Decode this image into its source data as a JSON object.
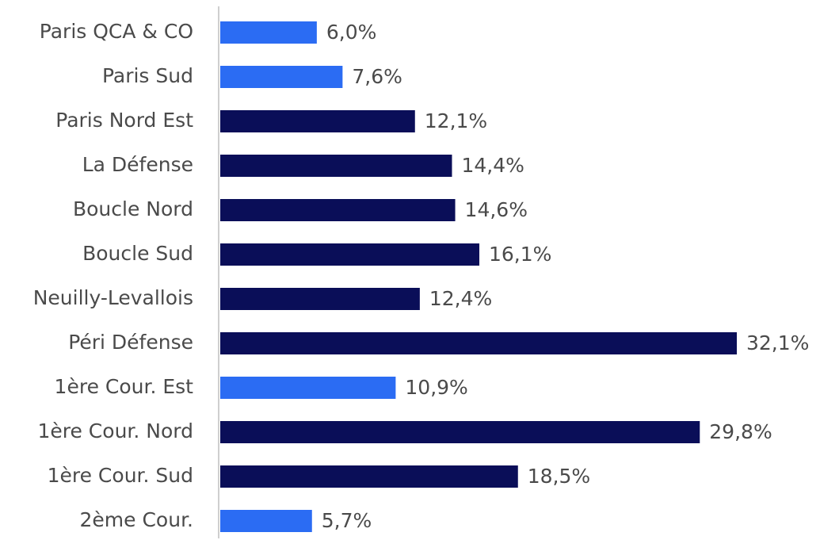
{
  "chart_data": {
    "type": "hbar",
    "categories": [
      "Paris QCA & CO",
      "Paris Sud",
      "Paris Nord Est",
      "La Défense",
      "Boucle Nord",
      "Boucle Sud",
      "Neuilly-Levallois",
      "Péri Défense",
      "1ère Cour. Est",
      "1ère Cour. Nord",
      "1ère Cour. Sud",
      "2ème Cour."
    ],
    "values": [
      6.0,
      7.6,
      12.1,
      14.4,
      14.6,
      16.1,
      12.4,
      32.1,
      10.9,
      29.8,
      18.5,
      5.7
    ],
    "value_labels": [
      "6,0%",
      "7,6%",
      "12,1%",
      "14,4%",
      "14,6%",
      "16,1%",
      "12,4%",
      "32,1%",
      "10,9%",
      "29,8%",
      "18,5%",
      "5,7%"
    ],
    "colors": [
      "#2b6cf3",
      "#2b6cf3",
      "#0a0e58",
      "#0a0e58",
      "#0a0e58",
      "#0a0e58",
      "#0a0e58",
      "#0a0e58",
      "#2b6cf3",
      "#0a0e58",
      "#0a0e58",
      "#2b6cf3"
    ]
  }
}
